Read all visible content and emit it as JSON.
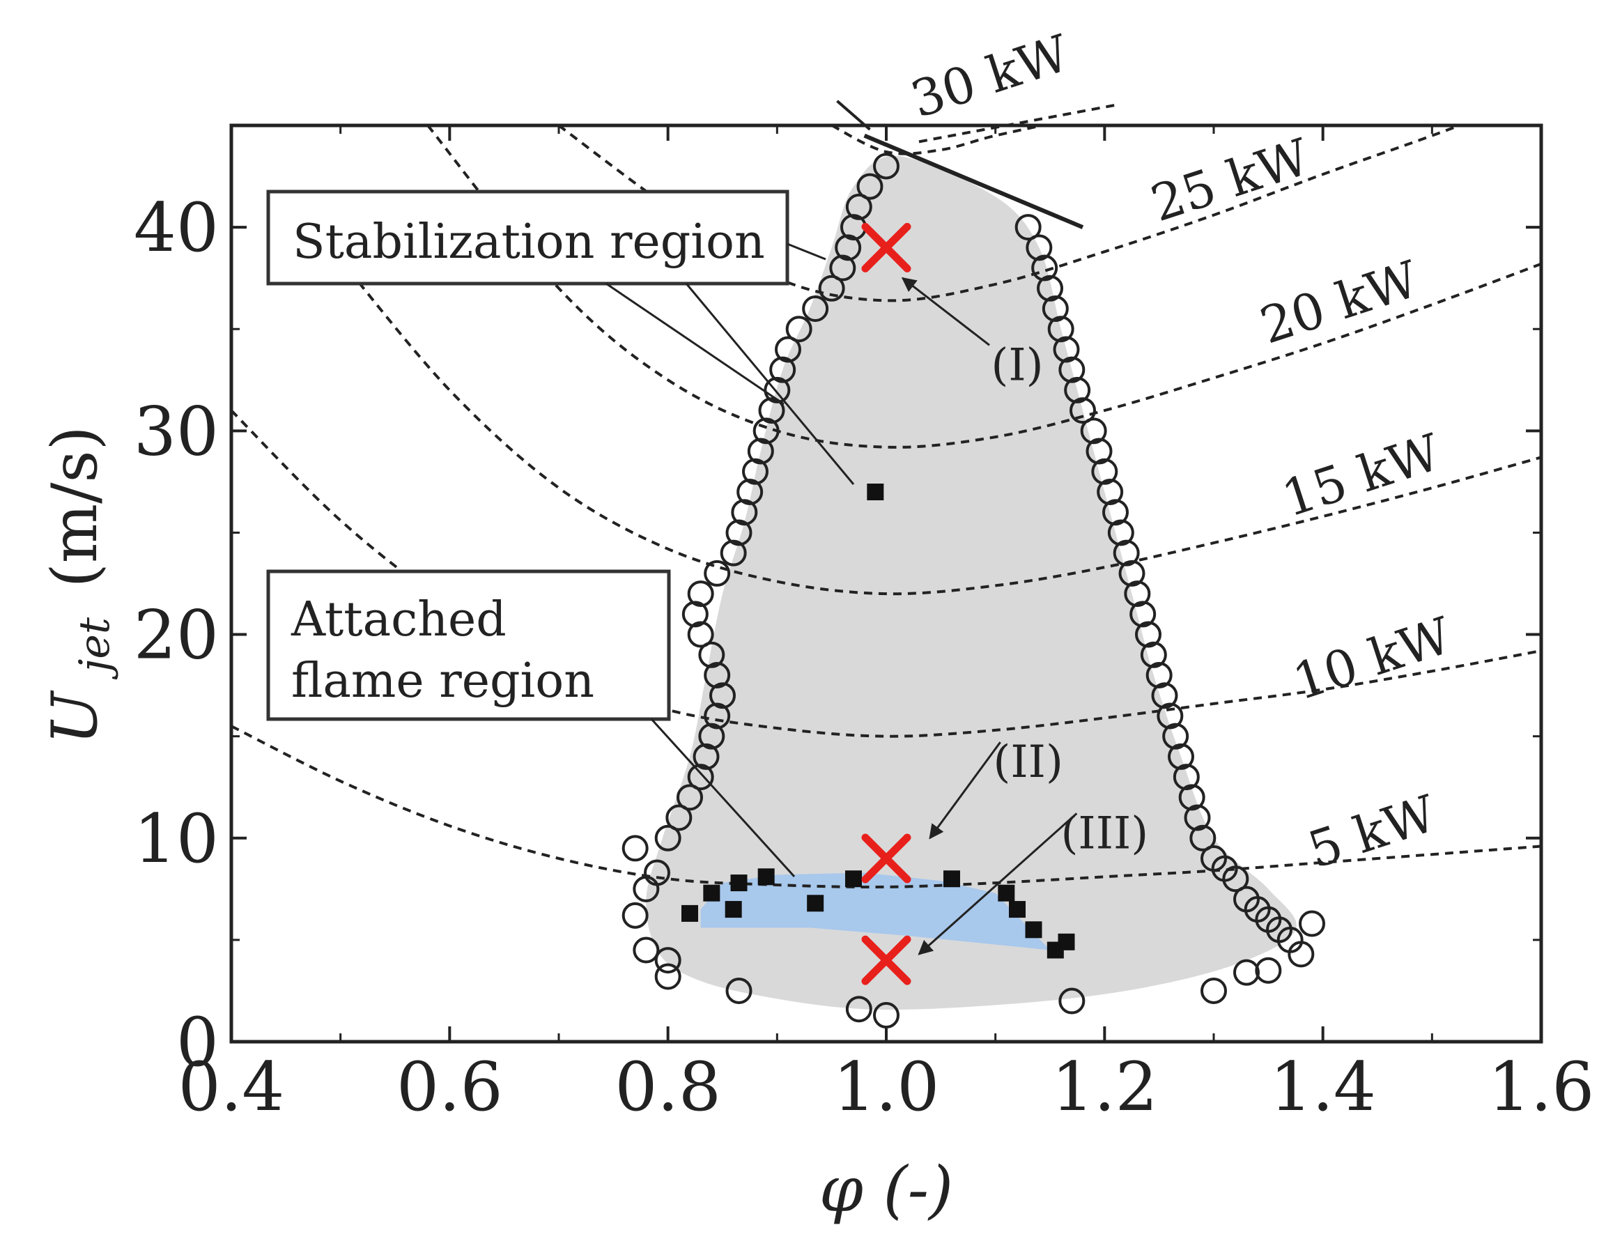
{
  "chart_data": {
    "type": "scatter",
    "xlabel": "φ (-)",
    "ylabel_main": "U",
    "ylabel_sub": "jet",
    "ylabel_unit": "(m/s)",
    "xlim": [
      0.4,
      1.6
    ],
    "ylim": [
      0,
      45
    ],
    "x_ticks": [
      0.4,
      0.6,
      0.8,
      1.0,
      1.2,
      1.4,
      1.6
    ],
    "x_tick_labels": [
      "0.4",
      "0.6",
      "0.8",
      "1.0",
      "1.2",
      "1.4",
      "1.6"
    ],
    "y_ticks": [
      0,
      10,
      20,
      30,
      40
    ],
    "y_tick_labels": [
      "0",
      "10",
      "20",
      "30",
      "40"
    ],
    "colors": {
      "stabilization_fill": "#d9d9d9",
      "attached_fill": "#a8c8ec",
      "marker_x": "#e8201c",
      "ink": "#222222"
    },
    "regions": {
      "stabilization": {
        "label": "Stabilization region",
        "boundary": [
          [
            1.01,
            43.5
          ],
          [
            0.97,
            42
          ],
          [
            0.95,
            39
          ],
          [
            0.93,
            36
          ],
          [
            0.905,
            33
          ],
          [
            0.885,
            29
          ],
          [
            0.87,
            25.5
          ],
          [
            0.85,
            22
          ],
          [
            0.835,
            18
          ],
          [
            0.82,
            14
          ],
          [
            0.795,
            10
          ],
          [
            0.78,
            7
          ],
          [
            0.79,
            4.5
          ],
          [
            0.82,
            3.2
          ],
          [
            0.88,
            2.3
          ],
          [
            0.98,
            1.6
          ],
          [
            1.1,
            1.8
          ],
          [
            1.22,
            2.5
          ],
          [
            1.32,
            3.8
          ],
          [
            1.375,
            5.5
          ],
          [
            1.35,
            7.5
          ],
          [
            1.3,
            10
          ],
          [
            1.27,
            14
          ],
          [
            1.245,
            18
          ],
          [
            1.225,
            22
          ],
          [
            1.2,
            27
          ],
          [
            1.18,
            31
          ],
          [
            1.16,
            35
          ],
          [
            1.14,
            39
          ],
          [
            1.1,
            41.5
          ]
        ]
      },
      "attached": {
        "label_line1": "Attached",
        "label_line2": "flame region",
        "polygon": [
          [
            0.83,
            6.5
          ],
          [
            0.85,
            7.8
          ],
          [
            0.9,
            8.2
          ],
          [
            0.98,
            8.3
          ],
          [
            1.05,
            7.9
          ],
          [
            1.1,
            7.3
          ],
          [
            1.15,
            4.5
          ],
          [
            1.02,
            5.2
          ],
          [
            0.93,
            5.6
          ],
          [
            0.83,
            5.6
          ]
        ]
      }
    },
    "power_curves": [
      {
        "label": "5 kW",
        "label_at": [
          1.45,
          9.5
        ],
        "points": [
          [
            0.4,
            15.5
          ],
          [
            0.5,
            12.8
          ],
          [
            0.6,
            10.6
          ],
          [
            0.7,
            9.0
          ],
          [
            0.8,
            8.0
          ],
          [
            0.9,
            7.7
          ],
          [
            1.0,
            7.6
          ],
          [
            1.1,
            7.8
          ],
          [
            1.2,
            8.1
          ],
          [
            1.3,
            8.4
          ],
          [
            1.4,
            8.8
          ],
          [
            1.5,
            9.2
          ],
          [
            1.6,
            9.6
          ]
        ]
      },
      {
        "label": "10 kW",
        "label_at": [
          1.45,
          18
        ],
        "points": [
          [
            0.4,
            31
          ],
          [
            0.5,
            25.6
          ],
          [
            0.6,
            21.4
          ],
          [
            0.7,
            18.2
          ],
          [
            0.8,
            16.3
          ],
          [
            0.9,
            15.4
          ],
          [
            1.0,
            15.0
          ],
          [
            1.1,
            15.3
          ],
          [
            1.2,
            15.9
          ],
          [
            1.3,
            16.6
          ],
          [
            1.4,
            17.3
          ],
          [
            1.5,
            18.2
          ],
          [
            1.6,
            19.2
          ]
        ]
      },
      {
        "label": "15 kW",
        "label_at": [
          1.44,
          27
        ],
        "points": [
          [
            0.5,
            38.4
          ],
          [
            0.6,
            32.0
          ],
          [
            0.7,
            27.2
          ],
          [
            0.8,
            24.2
          ],
          [
            0.9,
            22.6
          ],
          [
            1.0,
            22.0
          ],
          [
            1.1,
            22.4
          ],
          [
            1.2,
            23.3
          ],
          [
            1.3,
            24.5
          ],
          [
            1.4,
            25.8
          ],
          [
            1.5,
            27.2
          ],
          [
            1.6,
            28.7
          ]
        ]
      },
      {
        "label": "20 kW",
        "label_at": [
          1.42,
          35.5
        ],
        "points": [
          [
            0.58,
            45
          ],
          [
            0.7,
            37.0
          ],
          [
            0.8,
            32.5
          ],
          [
            0.9,
            30.0
          ],
          [
            1.0,
            29.2
          ],
          [
            1.1,
            29.7
          ],
          [
            1.2,
            31.0
          ],
          [
            1.3,
            32.6
          ],
          [
            1.4,
            34.3
          ],
          [
            1.5,
            36.2
          ],
          [
            1.6,
            38.2
          ]
        ]
      },
      {
        "label": "25 kW",
        "label_at": [
          1.32,
          41.5
        ],
        "points": [
          [
            0.7,
            45
          ],
          [
            0.8,
            41.0
          ],
          [
            0.9,
            37.5
          ],
          [
            1.0,
            36.4
          ],
          [
            1.1,
            37.2
          ],
          [
            1.2,
            38.8
          ],
          [
            1.3,
            40.6
          ],
          [
            1.4,
            42.6
          ],
          [
            1.5,
            44.5
          ],
          [
            1.6,
            46.5
          ]
        ]
      },
      {
        "label": "30 kW",
        "label_at": [
          1.1,
          46.6
        ],
        "points": [
          [
            0.95,
            45
          ],
          [
            1.0,
            43.7
          ],
          [
            1.05,
            43.8
          ],
          [
            1.1,
            44.5
          ],
          [
            1.17,
            45.3
          ]
        ]
      }
    ],
    "stabilization_limit_segment": {
      "points": [
        [
          0.98,
          44.5
        ],
        [
          1.18,
          40
        ]
      ]
    },
    "open_circles": [
      [
        0.77,
        9.5
      ],
      [
        0.77,
        6.2
      ],
      [
        0.78,
        4.5
      ],
      [
        0.8,
        4.0
      ],
      [
        0.8,
        3.2
      ],
      [
        0.78,
        7.5
      ],
      [
        0.79,
        8.3
      ],
      [
        0.8,
        10.0
      ],
      [
        0.81,
        11.0
      ],
      [
        0.82,
        12.0
      ],
      [
        0.83,
        13.0
      ],
      [
        0.835,
        14.0
      ],
      [
        0.84,
        15.0
      ],
      [
        0.845,
        16.0
      ],
      [
        0.85,
        17.0
      ],
      [
        0.845,
        18.0
      ],
      [
        0.84,
        19.0
      ],
      [
        0.83,
        20.0
      ],
      [
        0.825,
        21.0
      ],
      [
        0.83,
        22.0
      ],
      [
        0.845,
        23.0
      ],
      [
        0.86,
        24.0
      ],
      [
        0.865,
        25.0
      ],
      [
        0.87,
        26.0
      ],
      [
        0.875,
        27.0
      ],
      [
        0.88,
        28.0
      ],
      [
        0.885,
        29.0
      ],
      [
        0.89,
        30.0
      ],
      [
        0.895,
        31.0
      ],
      [
        0.9,
        32.0
      ],
      [
        0.905,
        33.0
      ],
      [
        0.91,
        34.0
      ],
      [
        0.92,
        35.0
      ],
      [
        0.935,
        36.0
      ],
      [
        0.95,
        37.0
      ],
      [
        0.96,
        38.0
      ],
      [
        0.965,
        39.0
      ],
      [
        0.97,
        40.0
      ],
      [
        0.975,
        41.0
      ],
      [
        0.985,
        42.0
      ],
      [
        1.0,
        43.0
      ],
      [
        1.13,
        40.0
      ],
      [
        1.14,
        39.0
      ],
      [
        1.145,
        38.0
      ],
      [
        1.15,
        37.0
      ],
      [
        1.155,
        36.0
      ],
      [
        1.16,
        35.0
      ],
      [
        1.165,
        34.0
      ],
      [
        1.17,
        33.0
      ],
      [
        1.175,
        32.0
      ],
      [
        1.18,
        31.0
      ],
      [
        1.19,
        30.0
      ],
      [
        1.195,
        29.0
      ],
      [
        1.2,
        28.0
      ],
      [
        1.205,
        27.0
      ],
      [
        1.21,
        26.0
      ],
      [
        1.215,
        25.0
      ],
      [
        1.22,
        24.0
      ],
      [
        1.225,
        23.0
      ],
      [
        1.23,
        22.0
      ],
      [
        1.235,
        21.0
      ],
      [
        1.24,
        20.0
      ],
      [
        1.245,
        19.0
      ],
      [
        1.25,
        18.0
      ],
      [
        1.255,
        17.0
      ],
      [
        1.26,
        16.0
      ],
      [
        1.265,
        15.0
      ],
      [
        1.27,
        14.0
      ],
      [
        1.275,
        13.0
      ],
      [
        1.28,
        12.0
      ],
      [
        1.285,
        11.0
      ],
      [
        1.29,
        10.0
      ],
      [
        1.3,
        9.0
      ],
      [
        1.31,
        8.5
      ],
      [
        1.32,
        8.0
      ],
      [
        1.33,
        7.0
      ],
      [
        1.34,
        6.5
      ],
      [
        1.35,
        6.0
      ],
      [
        1.36,
        5.5
      ],
      [
        1.37,
        5.0
      ],
      [
        1.38,
        4.3
      ],
      [
        1.39,
        5.8
      ],
      [
        1.35,
        3.5
      ],
      [
        1.33,
        3.4
      ],
      [
        1.3,
        2.5
      ],
      [
        1.17,
        2.0
      ],
      [
        0.865,
        2.5
      ],
      [
        0.975,
        1.6
      ],
      [
        1.0,
        1.3
      ]
    ],
    "filled_squares": [
      [
        0.82,
        6.3
      ],
      [
        0.84,
        7.3
      ],
      [
        0.86,
        6.5
      ],
      [
        0.865,
        7.8
      ],
      [
        0.89,
        8.1
      ],
      [
        0.935,
        6.8
      ],
      [
        0.97,
        8.0
      ],
      [
        0.99,
        27.0
      ],
      [
        1.06,
        8.0
      ],
      [
        1.11,
        7.3
      ],
      [
        1.12,
        6.5
      ],
      [
        1.135,
        5.5
      ],
      [
        1.155,
        4.5
      ],
      [
        1.165,
        4.9
      ]
    ],
    "red_markers": [
      [
        1.0,
        39.0
      ],
      [
        1.0,
        9.0
      ],
      [
        1.0,
        4.0
      ]
    ],
    "annotations": [
      {
        "text": "(I)",
        "at": [
          1.12,
          32.5
        ],
        "arrow_to": [
          1.015,
          37.5
        ]
      },
      {
        "text": "(II)",
        "at": [
          1.13,
          13.0
        ],
        "arrow_to": [
          1.04,
          10.0
        ]
      },
      {
        "text": "(III)",
        "at": [
          1.2,
          9.5
        ],
        "arrow_to": [
          1.03,
          4.3
        ]
      }
    ]
  }
}
